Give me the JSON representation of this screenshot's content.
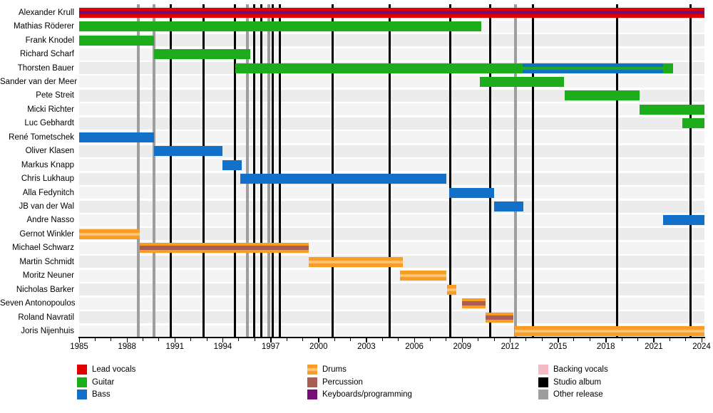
{
  "chart_data": {
    "type": "timeline",
    "x_axis": {
      "min": 1985,
      "max": 2024,
      "minor_tick_every": 1,
      "major_ticks": [
        1985,
        1988,
        1991,
        1994,
        1997,
        2000,
        2003,
        2006,
        2009,
        2012,
        2015,
        2018,
        2021,
        2024
      ]
    },
    "colors": {
      "Lead vocals": "#e10000",
      "Guitar": "#1cac1c",
      "Bass": "#1270c9",
      "Drums": "#f89c23",
      "drums_highlight": "#fdc679",
      "Percussion": "#aa5d52",
      "Keyboards/programming": "#760d76",
      "Backing vocals": "#f6bac6",
      "Studio album": "#000000",
      "Other release": "#9e9e9e",
      "row_stripe_even": "#ececec",
      "row_stripe_odd": "#f4f4f4"
    },
    "rows": [
      {
        "name": "Alexander Krull",
        "bars": [
          {
            "role": "Lead vocals",
            "from": 1985,
            "to": null,
            "overlay": {
              "role": "Keyboards/programming"
            }
          }
        ]
      },
      {
        "name": "Mathias Röderer",
        "bars": [
          {
            "role": "Guitar",
            "from": 1985,
            "to": 2010.2
          }
        ]
      },
      {
        "name": "Frank Knodel",
        "bars": [
          {
            "role": "Guitar",
            "from": 1985,
            "to": 1989.7
          }
        ]
      },
      {
        "name": "Richard Scharf",
        "bars": [
          {
            "role": "Guitar",
            "from": 1989.7,
            "to": 1995.7
          }
        ]
      },
      {
        "name": "Thorsten Bauer",
        "bars": [
          {
            "role": "Guitar",
            "from": 1994.8,
            "to": 2022.2
          },
          {
            "role": "Bass",
            "from": 2012.8,
            "to": 2021.6,
            "overlay": {
              "role": "Guitar"
            }
          }
        ]
      },
      {
        "name": "Sander van der Meer",
        "bars": [
          {
            "role": "Guitar",
            "from": 2010.1,
            "to": 2015.4
          }
        ]
      },
      {
        "name": "Pete Streit",
        "bars": [
          {
            "role": "Guitar",
            "from": 2015.4,
            "to": 2020.1
          }
        ]
      },
      {
        "name": "Micki Richter",
        "bars": [
          {
            "role": "Guitar",
            "from": 2020.1,
            "to": null
          }
        ]
      },
      {
        "name": "Luc Gebhardt",
        "bars": [
          {
            "role": "Guitar",
            "from": 2022.8,
            "to": null
          }
        ]
      },
      {
        "name": "René Tometschek",
        "bars": [
          {
            "role": "Bass",
            "from": 1985,
            "to": 1989.7
          }
        ]
      },
      {
        "name": "Oliver Klasen",
        "bars": [
          {
            "role": "Bass",
            "from": 1989.7,
            "to": 1994.0
          }
        ]
      },
      {
        "name": "Markus Knapp",
        "bars": [
          {
            "role": "Bass",
            "from": 1994.0,
            "to": 1995.2
          }
        ]
      },
      {
        "name": "Chris Lukhaup",
        "bars": [
          {
            "role": "Bass",
            "from": 1995.1,
            "to": 2008.0
          }
        ]
      },
      {
        "name": "Alla Fedynitch",
        "bars": [
          {
            "role": "Bass",
            "from": 2008.2,
            "to": 2011.0
          }
        ]
      },
      {
        "name": "JB van der Wal",
        "bars": [
          {
            "role": "Bass",
            "from": 2011.0,
            "to": 2012.85
          }
        ]
      },
      {
        "name": "Andre Nasso",
        "bars": [
          {
            "role": "Bass",
            "from": 2021.6,
            "to": null
          }
        ]
      },
      {
        "name": "Gernot Winkler",
        "bars": [
          {
            "role": "Drums",
            "from": 1985,
            "to": 1988.8
          }
        ]
      },
      {
        "name": "Michael Schwarz",
        "bars": [
          {
            "role": "Drums",
            "from": 1988.8,
            "to": 1999.4,
            "overlay": {
              "role": "Percussion"
            }
          }
        ]
      },
      {
        "name": "Martin Schmidt",
        "bars": [
          {
            "role": "Drums",
            "from": 1999.4,
            "to": 2005.3
          }
        ]
      },
      {
        "name": "Moritz Neuner",
        "bars": [
          {
            "role": "Drums",
            "from": 2005.1,
            "to": 2008.0
          }
        ]
      },
      {
        "name": "Nicholas Barker",
        "bars": [
          {
            "role": "Drums",
            "from": 2008.05,
            "to": 2008.65
          }
        ]
      },
      {
        "name": "Seven Antonopoulos",
        "bars": [
          {
            "role": "Drums",
            "from": 2009.0,
            "to": 2010.45,
            "overlay": {
              "role": "Percussion"
            }
          }
        ]
      },
      {
        "name": "Roland Navratil",
        "bars": [
          {
            "role": "Drums",
            "from": 2010.45,
            "to": 2012.2,
            "overlay": {
              "role": "Percussion"
            }
          }
        ]
      },
      {
        "name": "Joris Nijenhuis",
        "bars": [
          {
            "role": "Drums",
            "from": 2012.3,
            "to": null
          }
        ]
      }
    ],
    "releases": [
      {
        "year": 1988.69,
        "type": "other"
      },
      {
        "year": 1989.7,
        "type": "other"
      },
      {
        "year": 1990.74,
        "type": "studio"
      },
      {
        "year": 1992.8,
        "type": "studio"
      },
      {
        "year": 1994.74,
        "type": "studio"
      },
      {
        "year": 1995.55,
        "type": "other"
      },
      {
        "year": 1995.95,
        "type": "studio"
      },
      {
        "year": 1996.4,
        "type": "studio"
      },
      {
        "year": 1996.88,
        "type": "other"
      },
      {
        "year": 1997.13,
        "type": "studio"
      },
      {
        "year": 1997.58,
        "type": "studio"
      },
      {
        "year": 2000.87,
        "type": "studio"
      },
      {
        "year": 2004.44,
        "type": "studio"
      },
      {
        "year": 2008.24,
        "type": "studio"
      },
      {
        "year": 2010.77,
        "type": "studio"
      },
      {
        "year": 2012.36,
        "type": "other"
      },
      {
        "year": 2013.45,
        "type": "studio"
      },
      {
        "year": 2018.71,
        "type": "studio"
      },
      {
        "year": 2023.29,
        "type": "studio"
      }
    ],
    "legend": [
      {
        "label": "Lead vocals",
        "color_key": "Lead vocals"
      },
      {
        "label": "Guitar",
        "color_key": "Guitar"
      },
      {
        "label": "Bass",
        "color_key": "Bass"
      },
      {
        "label": "Drums",
        "color_key": "Drums"
      },
      {
        "label": "Percussion",
        "color_key": "Percussion"
      },
      {
        "label": "Keyboards/programming",
        "color_key": "Keyboards/programming"
      },
      {
        "label": "Backing vocals",
        "color_key": "Backing vocals"
      },
      {
        "label": "Studio album",
        "color_key": "Studio album"
      },
      {
        "label": "Other release",
        "color_key": "Other release"
      }
    ]
  }
}
